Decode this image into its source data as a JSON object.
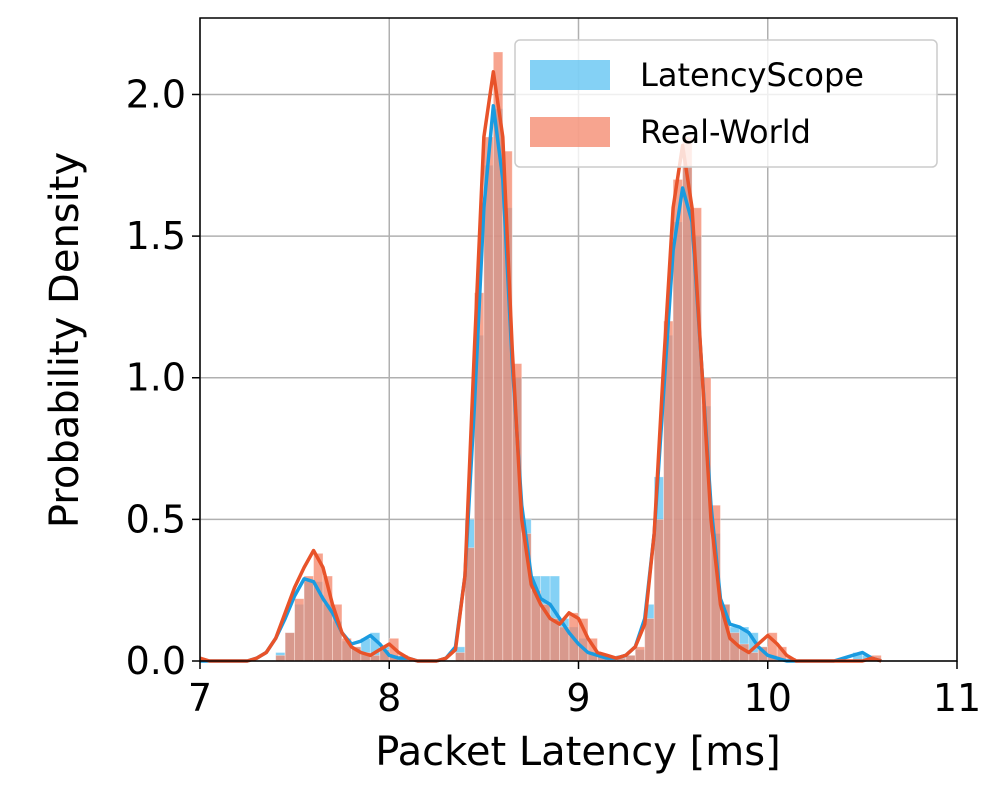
{
  "chart_data": {
    "type": "histogram",
    "xlabel": "Packet Latency [ms]",
    "ylabel": "Probability Density",
    "xlim": [
      7,
      11
    ],
    "ylim": [
      0,
      2.27
    ],
    "xticks": [
      7,
      8,
      9,
      10,
      11
    ],
    "yticks": [
      {
        "value": 0,
        "label": "0.0"
      },
      0.5,
      {
        "value": 1,
        "label": "1.0"
      },
      1.5,
      {
        "value": 2,
        "label": "2.0"
      }
    ],
    "grid": true,
    "legend": "upper right",
    "bins": [
      7.4,
      7.45,
      7.5,
      7.55,
      7.6,
      7.65,
      7.7,
      7.75,
      7.8,
      7.85,
      7.9,
      7.95,
      8.0,
      8.05,
      8.1,
      8.15,
      8.2,
      8.25,
      8.3,
      8.35,
      8.4,
      8.45,
      8.5,
      8.55,
      8.6,
      8.65,
      8.7,
      8.75,
      8.8,
      8.85,
      8.9,
      8.95,
      9.0,
      9.05,
      9.1,
      9.15,
      9.2,
      9.25,
      9.3,
      9.35,
      9.4,
      9.45,
      9.5,
      9.55,
      9.6,
      9.65,
      9.7,
      9.75,
      9.8,
      9.85,
      9.9,
      9.95,
      10.0,
      10.05,
      10.1,
      10.15,
      10.2,
      10.25,
      10.3,
      10.35,
      10.4,
      10.45,
      10.5,
      10.55,
      10.6
    ],
    "kde_x": [
      7.0,
      7.05,
      7.1,
      7.15,
      7.2,
      7.25,
      7.3,
      7.35,
      7.4,
      7.45,
      7.5,
      7.55,
      7.6,
      7.65,
      7.7,
      7.75,
      7.8,
      7.85,
      7.9,
      7.95,
      8.0,
      8.05,
      8.1,
      8.15,
      8.2,
      8.25,
      8.3,
      8.35,
      8.4,
      8.45,
      8.5,
      8.55,
      8.6,
      8.65,
      8.7,
      8.75,
      8.8,
      8.85,
      8.9,
      8.95,
      9.0,
      9.05,
      9.1,
      9.15,
      9.2,
      9.25,
      9.3,
      9.35,
      9.4,
      9.45,
      9.5,
      9.55,
      9.6,
      9.65,
      9.7,
      9.75,
      9.8,
      9.85,
      9.9,
      9.95,
      10.0,
      10.05,
      10.1,
      10.15,
      10.2,
      10.25,
      10.3,
      10.35,
      10.4,
      10.45,
      10.5,
      10.55,
      10.6
    ],
    "series": [
      {
        "name": "LatencyScope",
        "color": "#5bc2f2",
        "line_color": "#1a9be0",
        "values": [
          0.03,
          0.1,
          0.2,
          0.28,
          0.28,
          0.2,
          0.14,
          0.07,
          0.05,
          0.08,
          0.1,
          0.05,
          0.02,
          0.01,
          0,
          0,
          0,
          0,
          0,
          0.05,
          0.5,
          1.15,
          1.75,
          1.95,
          1.6,
          1.0,
          0.5,
          0.3,
          0.3,
          0.3,
          0.15,
          0.12,
          0.08,
          0.03,
          0.02,
          0.01,
          0.02,
          0.02,
          0.04,
          0.2,
          0.65,
          1.15,
          1.55,
          1.75,
          1.5,
          0.9,
          0.45,
          0.2,
          0.12,
          0.12,
          0.1,
          0.05,
          0.02,
          0.01,
          0,
          0,
          0,
          0,
          0,
          0,
          0,
          0.03,
          0.02,
          0.01
        ],
        "kde": [
          0,
          0,
          0,
          0,
          0,
          0,
          0.01,
          0.03,
          0.08,
          0.15,
          0.23,
          0.29,
          0.28,
          0.22,
          0.17,
          0.1,
          0.06,
          0.07,
          0.09,
          0.06,
          0.02,
          0.01,
          0.01,
          0,
          0,
          0,
          0.01,
          0.05,
          0.3,
          0.9,
          1.6,
          1.96,
          1.7,
          1.05,
          0.55,
          0.3,
          0.22,
          0.2,
          0.15,
          0.1,
          0.06,
          0.03,
          0.02,
          0.01,
          0.01,
          0.02,
          0.05,
          0.15,
          0.45,
          0.95,
          1.45,
          1.67,
          1.55,
          1.05,
          0.55,
          0.22,
          0.13,
          0.12,
          0.1,
          0.05,
          0.02,
          0.01,
          0,
          0,
          0,
          0,
          0,
          0,
          0.01,
          0.02,
          0.03,
          0.01,
          0
        ]
      },
      {
        "name": "Real-World",
        "color": "#f4866a",
        "line_color": "#e8532a",
        "values": [
          0.02,
          0.1,
          0.22,
          0.3,
          0.38,
          0.3,
          0.2,
          0.08,
          0.05,
          0.03,
          0.02,
          0.04,
          0.08,
          0.02,
          0,
          0,
          0,
          0,
          0,
          0.03,
          0.4,
          1.3,
          1.85,
          2.15,
          1.8,
          1.05,
          0.45,
          0.25,
          0.2,
          0.15,
          0.12,
          0.17,
          0.15,
          0.08,
          0.02,
          0.01,
          0.01,
          0.02,
          0.05,
          0.15,
          0.5,
          1.2,
          1.7,
          1.85,
          1.6,
          1.0,
          0.55,
          0.2,
          0.1,
          0.06,
          0.03,
          0.05,
          0.1,
          0.05,
          0.01,
          0,
          0,
          0,
          0,
          0,
          0,
          0,
          0,
          0.02
        ],
        "kde": [
          0.01,
          0,
          0,
          0,
          0,
          0,
          0.01,
          0.03,
          0.08,
          0.17,
          0.26,
          0.33,
          0.39,
          0.33,
          0.2,
          0.1,
          0.05,
          0.03,
          0.02,
          0.04,
          0.06,
          0.03,
          0.01,
          0,
          0,
          0,
          0.01,
          0.04,
          0.3,
          1.1,
          1.85,
          2.08,
          1.85,
          1.1,
          0.5,
          0.27,
          0.2,
          0.15,
          0.13,
          0.17,
          0.15,
          0.08,
          0.03,
          0.02,
          0.01,
          0.02,
          0.05,
          0.13,
          0.45,
          1.05,
          1.6,
          1.82,
          1.6,
          1.05,
          0.5,
          0.2,
          0.08,
          0.05,
          0.03,
          0.06,
          0.09,
          0.06,
          0.02,
          0,
          0,
          0,
          0,
          0,
          0,
          0,
          0,
          0.01,
          0
        ]
      }
    ]
  }
}
